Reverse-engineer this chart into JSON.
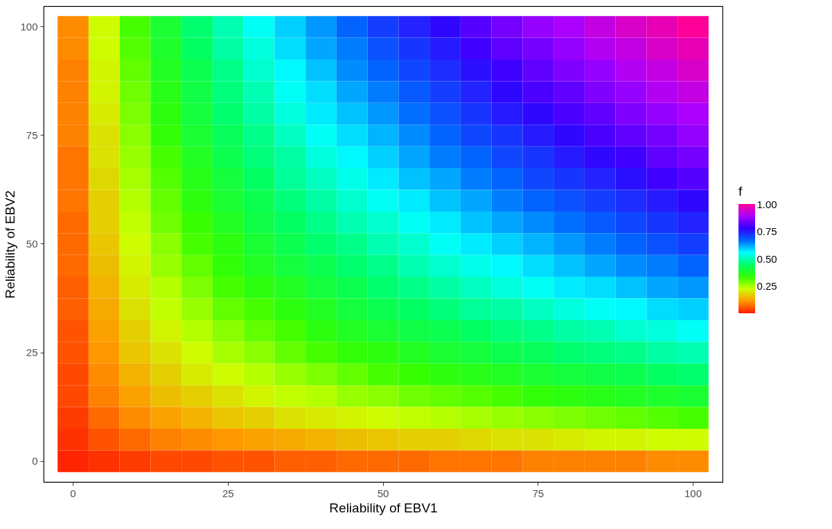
{
  "chart_data": {
    "type": "heatmap",
    "xlabel": "Reliability of EBV1",
    "ylabel": "Reliability of EBV2",
    "clabel": "f",
    "grid": false,
    "categories": [
      "0",
      null,
      null,
      null,
      null,
      "25",
      null,
      null,
      null,
      null,
      "50",
      null,
      null,
      null,
      null,
      "75",
      null,
      null,
      null,
      null,
      "100"
    ],
    "y_categories": [
      "100",
      null,
      null,
      null,
      null,
      "75",
      null,
      null,
      null,
      null,
      "50",
      null,
      null,
      null,
      null,
      "25",
      null,
      null,
      null,
      null,
      "0"
    ],
    "cells": [
      [
        0.1,
        0.22,
        0.32,
        0.39,
        0.45,
        0.5,
        0.55,
        0.59,
        0.63,
        0.67,
        0.71,
        0.74,
        0.77,
        0.81,
        0.84,
        0.87,
        0.89,
        0.92,
        0.95,
        0.97,
        1.0
      ],
      [
        0.1,
        0.22,
        0.31,
        0.38,
        0.44,
        0.49,
        0.53,
        0.58,
        0.62,
        0.65,
        0.69,
        0.72,
        0.75,
        0.79,
        0.82,
        0.84,
        0.87,
        0.9,
        0.92,
        0.95,
        0.97
      ],
      [
        0.09,
        0.21,
        0.3,
        0.37,
        0.42,
        0.47,
        0.52,
        0.56,
        0.6,
        0.64,
        0.67,
        0.7,
        0.73,
        0.76,
        0.79,
        0.82,
        0.85,
        0.87,
        0.9,
        0.92,
        0.95
      ],
      [
        0.09,
        0.21,
        0.29,
        0.36,
        0.41,
        0.46,
        0.5,
        0.55,
        0.58,
        0.62,
        0.65,
        0.68,
        0.71,
        0.74,
        0.77,
        0.8,
        0.82,
        0.85,
        0.87,
        0.9,
        0.92
      ],
      [
        0.09,
        0.2,
        0.28,
        0.35,
        0.4,
        0.45,
        0.49,
        0.53,
        0.57,
        0.6,
        0.63,
        0.66,
        0.69,
        0.72,
        0.75,
        0.77,
        0.8,
        0.82,
        0.85,
        0.87,
        0.89
      ],
      [
        0.09,
        0.19,
        0.27,
        0.34,
        0.39,
        0.43,
        0.47,
        0.51,
        0.55,
        0.58,
        0.61,
        0.64,
        0.67,
        0.7,
        0.72,
        0.75,
        0.77,
        0.8,
        0.82,
        0.84,
        0.87
      ],
      [
        0.08,
        0.19,
        0.26,
        0.32,
        0.37,
        0.42,
        0.46,
        0.49,
        0.53,
        0.56,
        0.59,
        0.62,
        0.65,
        0.67,
        0.7,
        0.72,
        0.75,
        0.77,
        0.79,
        0.82,
        0.84
      ],
      [
        0.08,
        0.18,
        0.25,
        0.31,
        0.36,
        0.4,
        0.44,
        0.48,
        0.51,
        0.54,
        0.57,
        0.6,
        0.62,
        0.65,
        0.67,
        0.7,
        0.72,
        0.74,
        0.76,
        0.79,
        0.81
      ],
      [
        0.08,
        0.17,
        0.24,
        0.3,
        0.35,
        0.39,
        0.42,
        0.46,
        0.49,
        0.52,
        0.55,
        0.57,
        0.6,
        0.62,
        0.65,
        0.67,
        0.69,
        0.71,
        0.73,
        0.75,
        0.77
      ],
      [
        0.07,
        0.17,
        0.23,
        0.29,
        0.33,
        0.37,
        0.41,
        0.44,
        0.47,
        0.5,
        0.52,
        0.55,
        0.57,
        0.6,
        0.62,
        0.64,
        0.66,
        0.68,
        0.7,
        0.72,
        0.74
      ],
      [
        0.07,
        0.16,
        0.22,
        0.27,
        0.32,
        0.35,
        0.39,
        0.42,
        0.45,
        0.47,
        0.5,
        0.52,
        0.55,
        0.57,
        0.59,
        0.61,
        0.63,
        0.65,
        0.67,
        0.69,
        0.71
      ],
      [
        0.07,
        0.15,
        0.21,
        0.26,
        0.3,
        0.34,
        0.37,
        0.4,
        0.42,
        0.45,
        0.47,
        0.5,
        0.52,
        0.54,
        0.56,
        0.58,
        0.6,
        0.62,
        0.64,
        0.65,
        0.67
      ],
      [
        0.06,
        0.14,
        0.2,
        0.24,
        0.28,
        0.32,
        0.35,
        0.37,
        0.4,
        0.42,
        0.45,
        0.47,
        0.49,
        0.51,
        0.53,
        0.55,
        0.57,
        0.58,
        0.6,
        0.62,
        0.63
      ],
      [
        0.06,
        0.13,
        0.19,
        0.23,
        0.26,
        0.3,
        0.32,
        0.35,
        0.37,
        0.4,
        0.42,
        0.44,
        0.46,
        0.48,
        0.49,
        0.51,
        0.53,
        0.55,
        0.56,
        0.58,
        0.59
      ],
      [
        0.05,
        0.12,
        0.17,
        0.21,
        0.24,
        0.27,
        0.3,
        0.32,
        0.35,
        0.37,
        0.39,
        0.41,
        0.42,
        0.44,
        0.46,
        0.47,
        0.49,
        0.5,
        0.52,
        0.53,
        0.55
      ],
      [
        0.05,
        0.11,
        0.16,
        0.19,
        0.22,
        0.25,
        0.27,
        0.3,
        0.32,
        0.34,
        0.35,
        0.37,
        0.39,
        0.4,
        0.42,
        0.43,
        0.45,
        0.46,
        0.47,
        0.49,
        0.5
      ],
      [
        0.04,
        0.1,
        0.14,
        0.17,
        0.2,
        0.22,
        0.24,
        0.26,
        0.28,
        0.3,
        0.32,
        0.33,
        0.35,
        0.36,
        0.37,
        0.39,
        0.4,
        0.41,
        0.42,
        0.44,
        0.45
      ],
      [
        0.04,
        0.09,
        0.12,
        0.15,
        0.17,
        0.19,
        0.21,
        0.23,
        0.24,
        0.26,
        0.27,
        0.29,
        0.3,
        0.31,
        0.32,
        0.34,
        0.35,
        0.36,
        0.37,
        0.38,
        0.39
      ],
      [
        0.03,
        0.07,
        0.1,
        0.12,
        0.14,
        0.16,
        0.17,
        0.19,
        0.2,
        0.21,
        0.22,
        0.23,
        0.24,
        0.25,
        0.26,
        0.27,
        0.28,
        0.29,
        0.3,
        0.31,
        0.32
      ],
      [
        0.02,
        0.05,
        0.07,
        0.09,
        0.1,
        0.11,
        0.12,
        0.13,
        0.14,
        0.15,
        0.16,
        0.17,
        0.17,
        0.18,
        0.19,
        0.19,
        0.2,
        0.21,
        0.21,
        0.22,
        0.22
      ],
      [
        0.01,
        0.02,
        0.03,
        0.04,
        0.04,
        0.05,
        0.05,
        0.06,
        0.06,
        0.07,
        0.07,
        0.07,
        0.08,
        0.08,
        0.08,
        0.09,
        0.09,
        0.09,
        0.09,
        0.1,
        0.1
      ]
    ],
    "colors": [
      "#ff1a00",
      "#ff9900",
      "#ccff00",
      "#33ff00",
      "#00ff66",
      "#00ffff",
      "#0066ff",
      "#3300ff",
      "#aa00ff",
      "#ff0099"
    ],
    "clim": [
      0,
      1
    ],
    "cticks": [
      {
        "value": 0.25,
        "label": "0.25"
      },
      {
        "value": 0.5,
        "label": "0.50"
      },
      {
        "value": 0.75,
        "label": "0.75"
      },
      {
        "value": 1,
        "label": "1.00"
      }
    ]
  }
}
